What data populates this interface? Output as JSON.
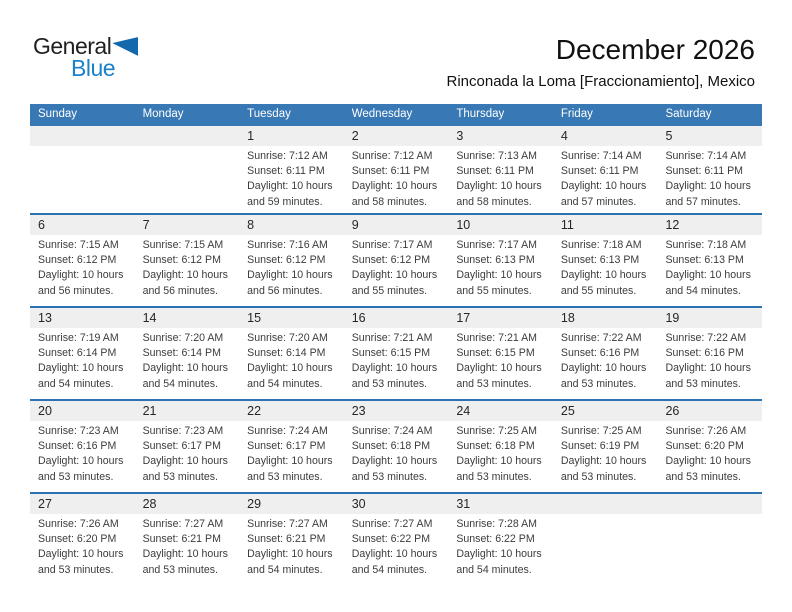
{
  "logo": {
    "general": "General",
    "blue": "Blue",
    "triangle_color": "#1468ad",
    "blue_color": "#1b82ca"
  },
  "header": {
    "title": "December 2026",
    "subtitle": "Rinconada la Loma [Fraccionamiento], Mexico"
  },
  "colors": {
    "weekday_bar": "#3778b5",
    "week_divider": "#2a72b0",
    "number_band": "#efefef"
  },
  "labels": {
    "sunrise": "Sunrise:",
    "sunset": "Sunset:",
    "daylight": "Daylight:"
  },
  "weekdays": [
    "Sunday",
    "Monday",
    "Tuesday",
    "Wednesday",
    "Thursday",
    "Friday",
    "Saturday"
  ],
  "weeks": [
    [
      null,
      null,
      {
        "day": "1",
        "sunrise": "7:12 AM",
        "sunset": "6:11 PM",
        "daylight": "10 hours and 59 minutes."
      },
      {
        "day": "2",
        "sunrise": "7:12 AM",
        "sunset": "6:11 PM",
        "daylight": "10 hours and 58 minutes."
      },
      {
        "day": "3",
        "sunrise": "7:13 AM",
        "sunset": "6:11 PM",
        "daylight": "10 hours and 58 minutes."
      },
      {
        "day": "4",
        "sunrise": "7:14 AM",
        "sunset": "6:11 PM",
        "daylight": "10 hours and 57 minutes."
      },
      {
        "day": "5",
        "sunrise": "7:14 AM",
        "sunset": "6:11 PM",
        "daylight": "10 hours and 57 minutes."
      }
    ],
    [
      {
        "day": "6",
        "sunrise": "7:15 AM",
        "sunset": "6:12 PM",
        "daylight": "10 hours and 56 minutes."
      },
      {
        "day": "7",
        "sunrise": "7:15 AM",
        "sunset": "6:12 PM",
        "daylight": "10 hours and 56 minutes."
      },
      {
        "day": "8",
        "sunrise": "7:16 AM",
        "sunset": "6:12 PM",
        "daylight": "10 hours and 56 minutes."
      },
      {
        "day": "9",
        "sunrise": "7:17 AM",
        "sunset": "6:12 PM",
        "daylight": "10 hours and 55 minutes."
      },
      {
        "day": "10",
        "sunrise": "7:17 AM",
        "sunset": "6:13 PM",
        "daylight": "10 hours and 55 minutes."
      },
      {
        "day": "11",
        "sunrise": "7:18 AM",
        "sunset": "6:13 PM",
        "daylight": "10 hours and 55 minutes."
      },
      {
        "day": "12",
        "sunrise": "7:18 AM",
        "sunset": "6:13 PM",
        "daylight": "10 hours and 54 minutes."
      }
    ],
    [
      {
        "day": "13",
        "sunrise": "7:19 AM",
        "sunset": "6:14 PM",
        "daylight": "10 hours and 54 minutes."
      },
      {
        "day": "14",
        "sunrise": "7:20 AM",
        "sunset": "6:14 PM",
        "daylight": "10 hours and 54 minutes."
      },
      {
        "day": "15",
        "sunrise": "7:20 AM",
        "sunset": "6:14 PM",
        "daylight": "10 hours and 54 minutes."
      },
      {
        "day": "16",
        "sunrise": "7:21 AM",
        "sunset": "6:15 PM",
        "daylight": "10 hours and 53 minutes."
      },
      {
        "day": "17",
        "sunrise": "7:21 AM",
        "sunset": "6:15 PM",
        "daylight": "10 hours and 53 minutes."
      },
      {
        "day": "18",
        "sunrise": "7:22 AM",
        "sunset": "6:16 PM",
        "daylight": "10 hours and 53 minutes."
      },
      {
        "day": "19",
        "sunrise": "7:22 AM",
        "sunset": "6:16 PM",
        "daylight": "10 hours and 53 minutes."
      }
    ],
    [
      {
        "day": "20",
        "sunrise": "7:23 AM",
        "sunset": "6:16 PM",
        "daylight": "10 hours and 53 minutes."
      },
      {
        "day": "21",
        "sunrise": "7:23 AM",
        "sunset": "6:17 PM",
        "daylight": "10 hours and 53 minutes."
      },
      {
        "day": "22",
        "sunrise": "7:24 AM",
        "sunset": "6:17 PM",
        "daylight": "10 hours and 53 minutes."
      },
      {
        "day": "23",
        "sunrise": "7:24 AM",
        "sunset": "6:18 PM",
        "daylight": "10 hours and 53 minutes."
      },
      {
        "day": "24",
        "sunrise": "7:25 AM",
        "sunset": "6:18 PM",
        "daylight": "10 hours and 53 minutes."
      },
      {
        "day": "25",
        "sunrise": "7:25 AM",
        "sunset": "6:19 PM",
        "daylight": "10 hours and 53 minutes."
      },
      {
        "day": "26",
        "sunrise": "7:26 AM",
        "sunset": "6:20 PM",
        "daylight": "10 hours and 53 minutes."
      }
    ],
    [
      {
        "day": "27",
        "sunrise": "7:26 AM",
        "sunset": "6:20 PM",
        "daylight": "10 hours and 53 minutes."
      },
      {
        "day": "28",
        "sunrise": "7:27 AM",
        "sunset": "6:21 PM",
        "daylight": "10 hours and 53 minutes."
      },
      {
        "day": "29",
        "sunrise": "7:27 AM",
        "sunset": "6:21 PM",
        "daylight": "10 hours and 54 minutes."
      },
      {
        "day": "30",
        "sunrise": "7:27 AM",
        "sunset": "6:22 PM",
        "daylight": "10 hours and 54 minutes."
      },
      {
        "day": "31",
        "sunrise": "7:28 AM",
        "sunset": "6:22 PM",
        "daylight": "10 hours and 54 minutes."
      },
      null,
      null
    ]
  ]
}
